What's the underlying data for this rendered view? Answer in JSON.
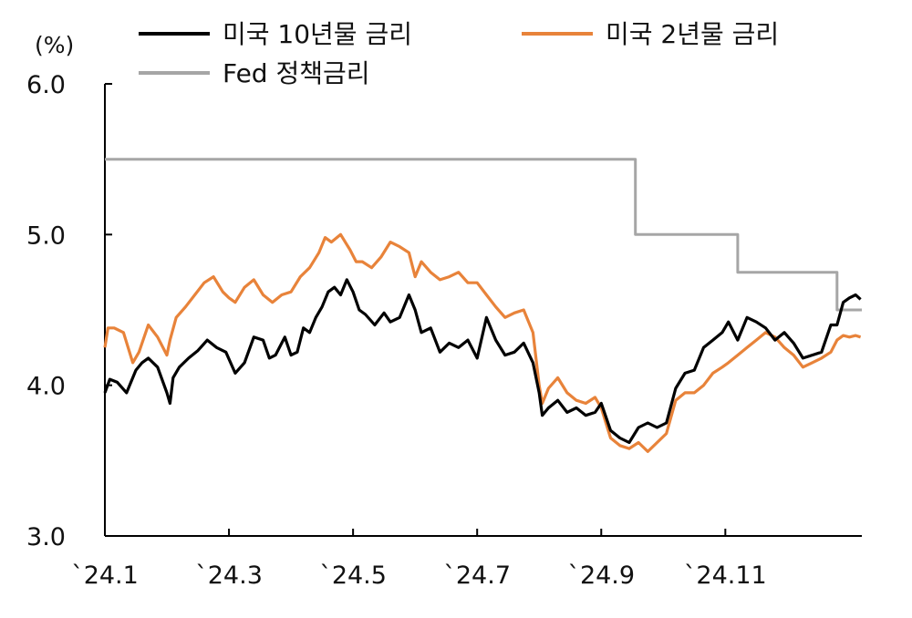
{
  "chart_data": {
    "type": "line",
    "ylabel": "(%)",
    "ylim": [
      3.0,
      6.0
    ],
    "yticks": [
      "3.0",
      "4.0",
      "5.0",
      "6.0"
    ],
    "xticks": [
      "`24.1",
      "`24.3",
      "`24.5",
      "`24.7",
      "`24.9",
      "`24.11"
    ],
    "xlim": [
      1,
      13.2
    ],
    "legend_position": "top",
    "series": [
      {
        "name": "미국 10년물 금리",
        "color": "#000000",
        "x": [
          1.0,
          1.08,
          1.2,
          1.35,
          1.5,
          1.6,
          1.7,
          1.85,
          2.0,
          2.05,
          2.1,
          2.2,
          2.35,
          2.5,
          2.65,
          2.8,
          2.95,
          3.1,
          3.25,
          3.4,
          3.55,
          3.65,
          3.75,
          3.9,
          4.0,
          4.1,
          4.2,
          4.3,
          4.4,
          4.5,
          4.6,
          4.7,
          4.8,
          4.9,
          5.0,
          5.1,
          5.2,
          5.35,
          5.5,
          5.6,
          5.75,
          5.9,
          6.0,
          6.1,
          6.25,
          6.4,
          6.55,
          6.7,
          6.85,
          7.0,
          7.15,
          7.3,
          7.45,
          7.6,
          7.75,
          7.9,
          8.0,
          8.05,
          8.15,
          8.3,
          8.45,
          8.6,
          8.75,
          8.9,
          9.0,
          9.15,
          9.3,
          9.45,
          9.6,
          9.75,
          9.9,
          10.05,
          10.2,
          10.35,
          10.5,
          10.65,
          10.8,
          10.95,
          11.05,
          11.2,
          11.35,
          11.5,
          11.65,
          11.8,
          11.95,
          12.1,
          12.25,
          12.4,
          12.55,
          12.7,
          12.8,
          12.9,
          13.0,
          13.1,
          13.18
        ],
        "values": [
          3.95,
          4.04,
          4.02,
          3.95,
          4.1,
          4.15,
          4.18,
          4.12,
          3.95,
          3.88,
          4.05,
          4.12,
          4.18,
          4.23,
          4.3,
          4.25,
          4.22,
          4.08,
          4.15,
          4.32,
          4.3,
          4.18,
          4.2,
          4.32,
          4.2,
          4.22,
          4.38,
          4.35,
          4.45,
          4.52,
          4.62,
          4.65,
          4.6,
          4.7,
          4.62,
          4.5,
          4.47,
          4.4,
          4.48,
          4.42,
          4.45,
          4.6,
          4.5,
          4.35,
          4.38,
          4.22,
          4.28,
          4.25,
          4.3,
          4.18,
          4.45,
          4.3,
          4.2,
          4.22,
          4.28,
          4.15,
          3.95,
          3.8,
          3.85,
          3.9,
          3.82,
          3.85,
          3.8,
          3.82,
          3.88,
          3.7,
          3.65,
          3.62,
          3.72,
          3.75,
          3.72,
          3.75,
          3.98,
          4.08,
          4.1,
          4.25,
          4.3,
          4.35,
          4.42,
          4.3,
          4.45,
          4.42,
          4.38,
          4.3,
          4.35,
          4.28,
          4.18,
          4.2,
          4.22,
          4.4,
          4.4,
          4.55,
          4.58,
          4.6,
          4.57
        ]
      },
      {
        "name": "미국 2년물 금리",
        "color": "#E8833A",
        "x": [
          1.0,
          1.05,
          1.15,
          1.3,
          1.45,
          1.55,
          1.7,
          1.85,
          2.0,
          2.05,
          2.15,
          2.3,
          2.45,
          2.6,
          2.75,
          2.9,
          3.0,
          3.1,
          3.25,
          3.4,
          3.55,
          3.7,
          3.85,
          4.0,
          4.15,
          4.3,
          4.45,
          4.55,
          4.65,
          4.8,
          4.95,
          5.05,
          5.15,
          5.3,
          5.45,
          5.6,
          5.75,
          5.9,
          6.0,
          6.1,
          6.25,
          6.4,
          6.55,
          6.7,
          6.85,
          7.0,
          7.15,
          7.3,
          7.45,
          7.6,
          7.75,
          7.9,
          8.0,
          8.05,
          8.15,
          8.3,
          8.45,
          8.6,
          8.75,
          8.9,
          9.0,
          9.15,
          9.3,
          9.45,
          9.6,
          9.75,
          9.9,
          10.05,
          10.2,
          10.35,
          10.5,
          10.65,
          10.8,
          10.95,
          11.05,
          11.2,
          11.35,
          11.5,
          11.65,
          11.8,
          11.95,
          12.1,
          12.25,
          12.4,
          12.55,
          12.7,
          12.8,
          12.9,
          13.0,
          13.1,
          13.18
        ],
        "values": [
          4.25,
          4.38,
          4.38,
          4.35,
          4.15,
          4.22,
          4.4,
          4.32,
          4.2,
          4.3,
          4.45,
          4.52,
          4.6,
          4.68,
          4.72,
          4.62,
          4.58,
          4.55,
          4.65,
          4.7,
          4.6,
          4.55,
          4.6,
          4.62,
          4.72,
          4.78,
          4.88,
          4.98,
          4.95,
          5.0,
          4.9,
          4.82,
          4.82,
          4.78,
          4.85,
          4.95,
          4.92,
          4.88,
          4.72,
          4.82,
          4.75,
          4.7,
          4.72,
          4.75,
          4.68,
          4.68,
          4.6,
          4.52,
          4.45,
          4.48,
          4.5,
          4.35,
          4.0,
          3.88,
          3.98,
          4.05,
          3.95,
          3.9,
          3.88,
          3.92,
          3.85,
          3.65,
          3.6,
          3.58,
          3.62,
          3.56,
          3.62,
          3.68,
          3.9,
          3.95,
          3.95,
          4.0,
          4.08,
          4.12,
          4.15,
          4.2,
          4.25,
          4.3,
          4.35,
          4.32,
          4.25,
          4.2,
          4.12,
          4.15,
          4.18,
          4.22,
          4.3,
          4.33,
          4.32,
          4.33,
          4.32
        ]
      },
      {
        "name": "Fed 정책금리",
        "color": "#A6A6A6",
        "x": [
          1.0,
          9.55,
          9.55,
          11.2,
          11.2,
          12.8,
          12.8,
          13.2
        ],
        "values": [
          5.5,
          5.5,
          5.0,
          5.0,
          4.75,
          4.75,
          4.5,
          4.5
        ]
      }
    ]
  }
}
